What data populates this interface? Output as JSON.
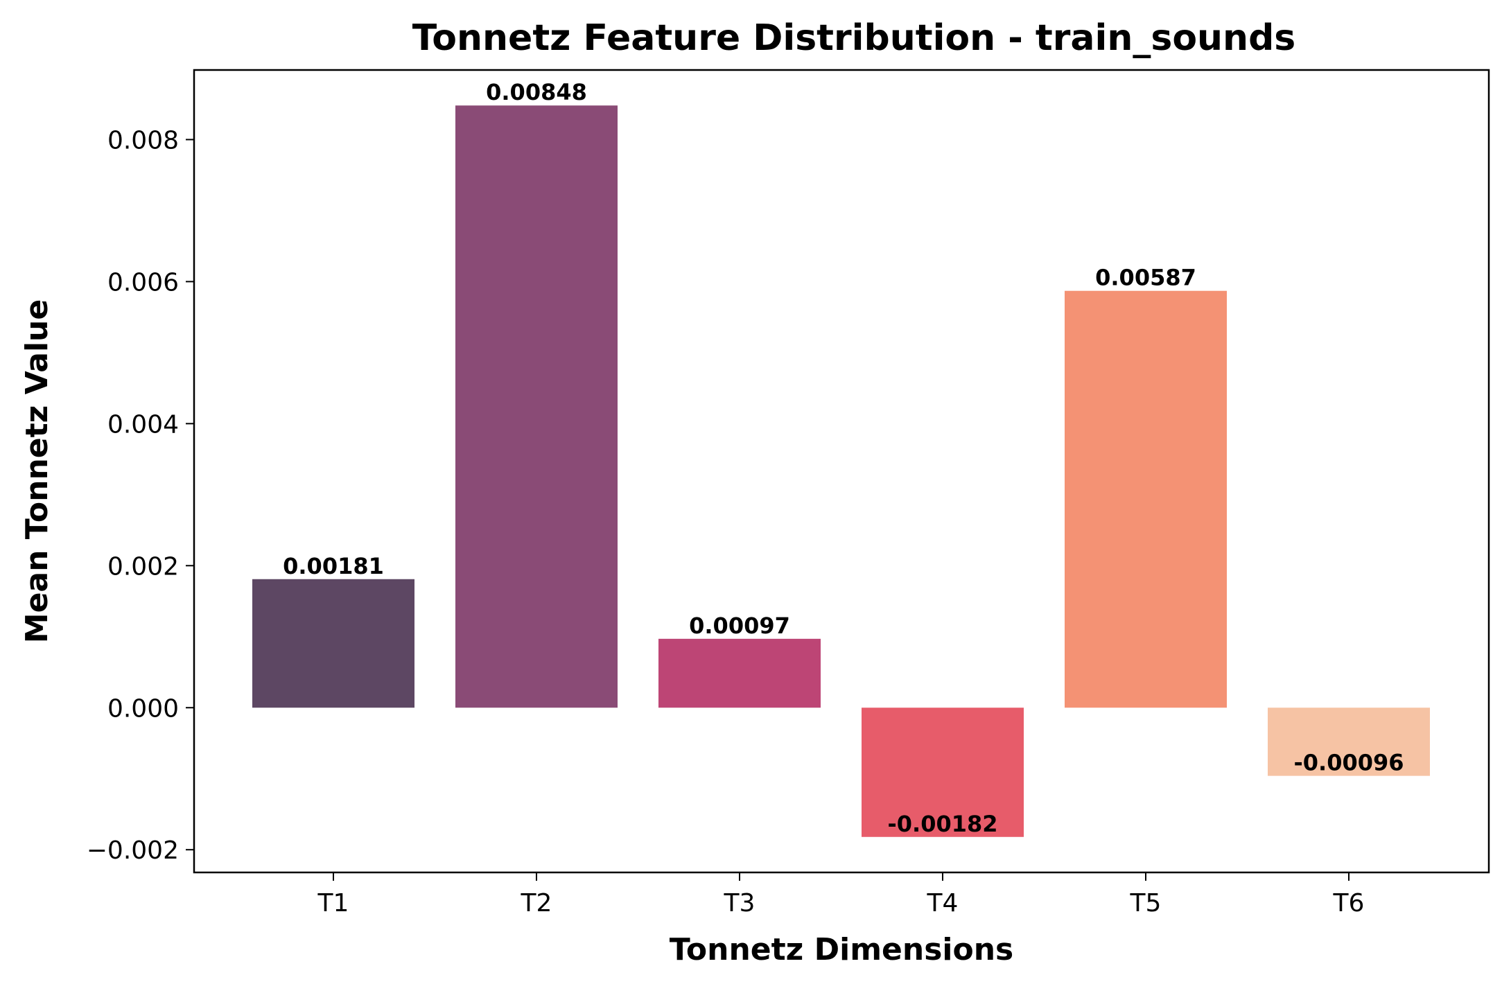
{
  "chart_data": {
    "type": "bar",
    "title": "Tonnetz Feature Distribution - train_sounds",
    "xlabel": "Tonnetz Dimensions",
    "ylabel": "Mean Tonnetz Value",
    "categories": [
      "T1",
      "T2",
      "T3",
      "T4",
      "T5",
      "T6"
    ],
    "values": [
      0.00181,
      0.00848,
      0.00097,
      -0.00182,
      0.00587,
      -0.00096
    ],
    "data_labels": [
      "0.00181",
      "0.00848",
      "0.00097",
      "-0.00182",
      "0.00587",
      "-0.00096"
    ],
    "colors": [
      "#5d4763",
      "#8a4b76",
      "#bd4575",
      "#e75c6a",
      "#f49274",
      "#f6c3a4"
    ],
    "ylim": [
      -0.00232,
      0.00898
    ],
    "yticks": [
      -0.002,
      0,
      0.002,
      0.004,
      0.006,
      0.008
    ],
    "ytick_labels": [
      "−0.002",
      "0.000",
      "0.002",
      "0.004",
      "0.006",
      "0.008"
    ],
    "grid": false,
    "legend": "none"
  }
}
